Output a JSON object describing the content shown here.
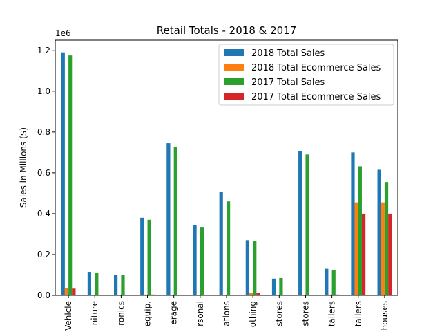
{
  "chart_data": {
    "type": "bar",
    "title": "Retail Totals - 2018 & 2017",
    "xlabel": "",
    "ylabel": "Sales in Millions ($)",
    "y_offset_label": "1e6",
    "ylim": [
      0,
      1.25
    ],
    "yticks": [
      "0.0",
      "0.2",
      "0.4",
      "0.6",
      "0.8",
      "1.0",
      "1.2"
    ],
    "legend_position": "top-right",
    "categories": [
      "Vehicle",
      "niture",
      "ronics",
      "equip.",
      "erage",
      "rsonal",
      "ations",
      "othing",
      "stores",
      "stores",
      "tailers",
      "tailers",
      "houses"
    ],
    "series": [
      {
        "name": "2018 Total Sales",
        "color": "#1f77b4",
        "values": [
          1.19,
          0.115,
          0.1,
          0.38,
          0.745,
          0.345,
          0.505,
          0.27,
          0.082,
          0.705,
          0.13,
          0.7,
          0.615
        ]
      },
      {
        "name": "2018 Total Ecommerce Sales",
        "color": "#ff7f0e",
        "values": [
          0.035,
          0.0,
          0.0,
          0.004,
          0.003,
          0.0,
          0.0,
          0.012,
          0.003,
          0.0,
          0.004,
          0.455,
          0.455
        ]
      },
      {
        "name": "2017 Total Sales",
        "color": "#2ca02c",
        "values": [
          1.175,
          0.112,
          0.1,
          0.37,
          0.725,
          0.335,
          0.46,
          0.265,
          0.085,
          0.69,
          0.125,
          0.632,
          0.555
        ]
      },
      {
        "name": "2017 Total Ecommerce Sales",
        "color": "#d62728",
        "values": [
          0.033,
          0.0,
          0.0,
          0.004,
          0.003,
          0.0,
          0.0,
          0.011,
          0.003,
          0.0,
          0.004,
          0.4,
          0.4
        ]
      }
    ]
  }
}
